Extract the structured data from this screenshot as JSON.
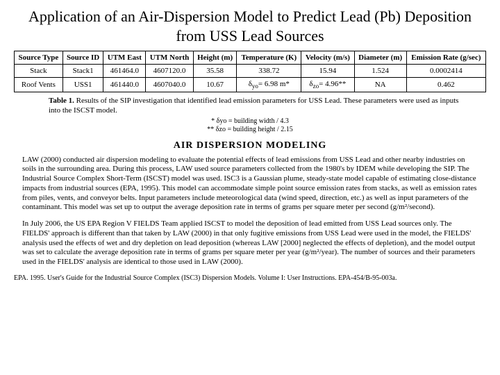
{
  "title": "Application of an Air-Dispersion Model to Predict Lead (Pb) Deposition from USS Lead Sources",
  "table": {
    "headers": [
      "Source Type",
      "Source ID",
      "UTM East",
      "UTM North",
      "Height (m)",
      "Temperature (K)",
      "Velocity (m/s)",
      "Diameter (m)",
      "Emission Rate (g/sec)"
    ],
    "rows": [
      [
        "Stack",
        "Stack1",
        "461464.0",
        "4607120.0",
        "35.58",
        "338.72",
        "15.94",
        "1.524",
        "0.0002414"
      ],
      [
        "Roof Vents",
        "USS1",
        "461440.0",
        "4607040.0",
        "10.67",
        "__DELTA_YO__",
        "__DELTA_ZO__",
        "NA",
        "0.462"
      ]
    ],
    "delta_yo_html": "δ<sub>yo</sub><span class='val'>= 6.98 m*</span>",
    "delta_zo_html": "δ<sub>zo</sub><span class='val'>= 4.96**</span>"
  },
  "caption_label": "Table 1.",
  "caption_text": "Results of the SIP investigation that identified lead emission parameters for USS Lead. These parameters were used as inputs into the ISCST model.",
  "footnote1": "* δyo = building width / 4.3",
  "footnote2": "** δzo = building height / 2.15",
  "section_heading": "AIR DISPERSION MODELING",
  "para1": "LAW (2000) conducted air dispersion modeling to evaluate the potential effects of lead emissions from USS Lead and other nearby industries on soils in the surrounding area. During this process, LAW used source parameters collected from the 1980's by IDEM while developing the SIP. The Industrial Source Complex Short-Term (ISCST) model was used. ISC3 is a Gaussian plume, steady-state model capable of estimating close-distance impacts from industrial sources (EPA, 1995). This model can accommodate simple point source emission rates from stacks, as well as emission rates from piles, vents, and conveyor belts. Input parameters include meteorological data (wind speed, direction, etc.) as well as input parameters of the contaminant. This model was set up to output the average deposition rate in terms of grams per square meter per second (g/m²/second).",
  "para2": "In July 2006, the US EPA Region V FIELDS Team applied ISCST to model the deposition of lead emitted from USS Lead sources only. The FIELDS' approach is different than that taken by LAW (2000) in that only fugitive emissions from USS Lead were used in the model, the FIELDS' analysis used the effects of wet and dry depletion on lead deposition (whereas LAW [2000] neglected the effects of depletion), and the model output was set to calculate the average deposition rate in terms of grams per square meter per year (g/m²/year). The number of sources and their parameters used in the FIELDS' analysis are identical to those used in LAW (2000).",
  "reference": "EPA. 1995. User's Guide for the Industrial Source Complex (ISC3) Dispersion Models. Volume I: User Instructions. EPA-454/B-95-003a.",
  "colors": {
    "background": "#ffffff",
    "text": "#000000",
    "border": "#000000"
  }
}
